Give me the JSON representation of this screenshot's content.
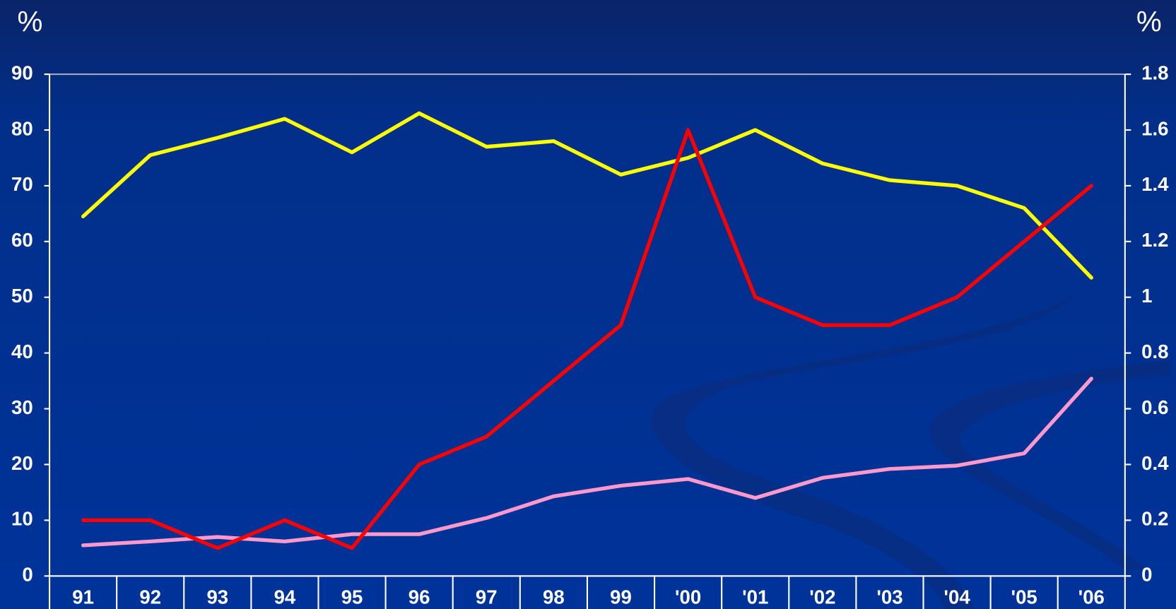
{
  "chart_data": {
    "type": "line",
    "categories": [
      "91",
      "92",
      "93",
      "94",
      "95",
      "96",
      "97",
      "98",
      "99",
      "'00",
      "'01",
      "'02",
      "'03",
      "'04",
      "'05",
      "'06"
    ],
    "ylabel": "%",
    "y2label": "%",
    "ylim": [
      0,
      90
    ],
    "yticks": [
      0,
      10,
      20,
      30,
      40,
      50,
      60,
      70,
      80,
      90
    ],
    "y2lim": [
      0,
      1.8
    ],
    "y2ticks": [
      0,
      0.2,
      0.4,
      0.6,
      0.8,
      1,
      1.2,
      1.4,
      1.6,
      1.8
    ],
    "grid": false,
    "series": [
      {
        "color": "#ffff00",
        "values": [
          64.5,
          75.5,
          78.6,
          82,
          76,
          83,
          77,
          78,
          72,
          75,
          80,
          74,
          71,
          70,
          66,
          53.5
        ]
      },
      {
        "color": "#ff99cc",
        "values": [
          5.5,
          6.2,
          7,
          6.2,
          7.5,
          7.5,
          10.4,
          14.3,
          16.2,
          17.4,
          14,
          17.6,
          19.2,
          19.8,
          22,
          35.4
        ]
      },
      {
        "color": "#ff0000",
        "axis": "y2",
        "values": [
          0.2,
          0.2,
          0.1,
          0.2,
          0.1,
          0.4,
          0.5,
          0.7,
          0.9,
          1.6,
          1.0,
          0.9,
          0.9,
          1.0,
          1.2,
          1.4
        ]
      }
    ]
  }
}
